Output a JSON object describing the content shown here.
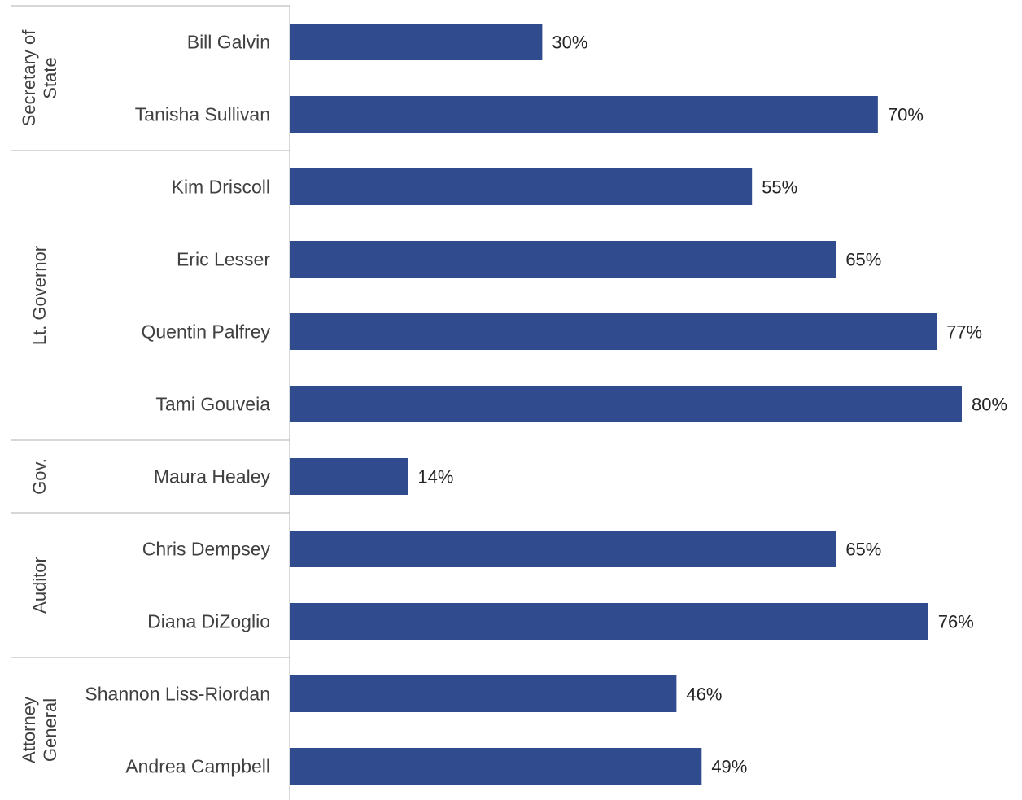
{
  "chart_data": {
    "type": "bar",
    "orientation": "horizontal",
    "groups": [
      {
        "name": [
          "Secretary of",
          "State"
        ],
        "categories": [
          "Bill Galvin",
          "Tanisha Sullivan"
        ],
        "values": [
          30,
          70
        ]
      },
      {
        "name": [
          "Lt. Governor"
        ],
        "categories": [
          "Kim Driscoll",
          "Eric Lesser",
          "Quentin Palfrey",
          "Tami Gouveia"
        ],
        "values": [
          55,
          65,
          77,
          80
        ]
      },
      {
        "name": [
          "Gov."
        ],
        "categories": [
          "Maura Healey"
        ],
        "values": [
          14
        ]
      },
      {
        "name": [
          "Auditor"
        ],
        "categories": [
          "Chris Dempsey",
          "Diana DiZoglio"
        ],
        "values": [
          65,
          76
        ]
      },
      {
        "name": [
          "Attorney",
          "General"
        ],
        "categories": [
          "Shannon Liss-Riordan",
          "Andrea Campbell"
        ],
        "values": [
          46,
          49
        ]
      }
    ],
    "value_suffix": "%",
    "xlim": [
      0,
      80
    ],
    "grid": false,
    "legend": "none",
    "bar_color": "#314C8E",
    "separator_color": "#BFBFBF"
  }
}
